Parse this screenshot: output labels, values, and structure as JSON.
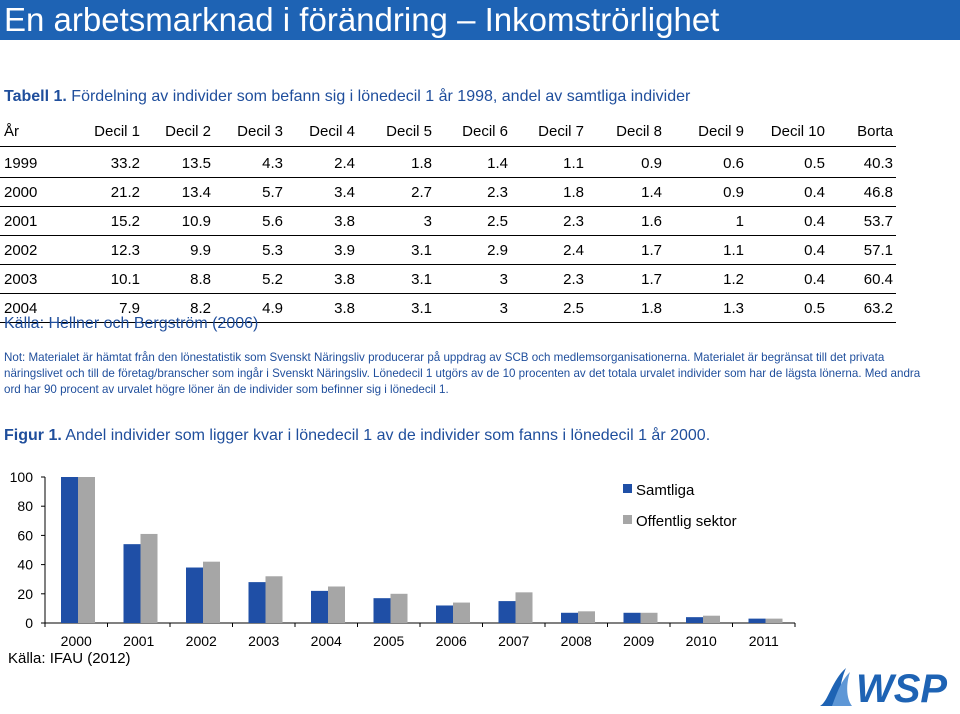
{
  "title": "En arbetsmarknad i förändring – Inkomströrlighet",
  "table": {
    "caption_label": "Tabell 1.",
    "caption_text": "Fördelning av individer som befann sig i lönedecil 1 år 1998, andel av samtliga individer",
    "headers": [
      "År",
      "Decil 1",
      "Decil 2",
      "Decil 3",
      "Decil 4",
      "Decil 5",
      "Decil 6",
      "Decil 7",
      "Decil 8",
      "Decil 9",
      "Decil 10",
      "Borta"
    ],
    "rows": [
      [
        "1999",
        "33.2",
        "13.5",
        "4.3",
        "2.4",
        "1.8",
        "1.4",
        "1.1",
        "0.9",
        "0.6",
        "0.5",
        "40.3"
      ],
      [
        "2000",
        "21.2",
        "13.4",
        "5.7",
        "3.4",
        "2.7",
        "2.3",
        "1.8",
        "1.4",
        "0.9",
        "0.4",
        "46.8"
      ],
      [
        "2001",
        "15.2",
        "10.9",
        "5.6",
        "3.8",
        "3",
        "2.5",
        "2.3",
        "1.6",
        "1",
        "0.4",
        "53.7"
      ],
      [
        "2002",
        "12.3",
        "9.9",
        "5.3",
        "3.9",
        "3.1",
        "2.9",
        "2.4",
        "1.7",
        "1.1",
        "0.4",
        "57.1"
      ],
      [
        "2003",
        "10.1",
        "8.8",
        "5.2",
        "3.8",
        "3.1",
        "3",
        "2.3",
        "1.7",
        "1.2",
        "0.4",
        "60.4"
      ],
      [
        "2004",
        "7.9",
        "8.2",
        "4.9",
        "3.8",
        "3.1",
        "3",
        "2.5",
        "1.8",
        "1.3",
        "0.5",
        "63.2"
      ]
    ],
    "source": "Källa: Hellner och Bergström (2006)",
    "note": "Not: Materialet är hämtat från den lönestatistik som Svenskt Näringsliv producerar på uppdrag av SCB och medlemsorganisationerna. Materialet är begränsat till det privata näringslivet och till de företag/branscher som ingår i Svenskt Näringsliv. Lönedecil 1 utgörs av de 10 procenten av det totala urvalet individer som har de lägsta lönerna. Med andra ord har 90 procent av urvalet högre löner än de individer som befinner sig i lönedecil 1."
  },
  "figure": {
    "caption_label": "Figur 1.",
    "caption_text": "Andel individer som ligger kvar i lönedecil 1 av de individer som fanns i lönedecil 1 år 2000.",
    "source": "Källa: IFAU (2012)"
  },
  "chart_data": {
    "type": "bar",
    "categories": [
      "2000",
      "2001",
      "2002",
      "2003",
      "2004",
      "2005",
      "2006",
      "2007",
      "2008",
      "2009",
      "2010",
      "2011"
    ],
    "series": [
      {
        "name": "Samtliga",
        "color": "#1f4fa6",
        "values": [
          100,
          54,
          38,
          28,
          22,
          17,
          12,
          15,
          7,
          7,
          4,
          3
        ]
      },
      {
        "name": "Offentlig sektor",
        "color": "#a6a6a6",
        "values": [
          100,
          61,
          42,
          32,
          25,
          20,
          14,
          21,
          8,
          7,
          5,
          3
        ]
      }
    ],
    "yticks": [
      "0",
      "20",
      "40",
      "60",
      "80",
      "100"
    ],
    "ylim": [
      0,
      100
    ],
    "legend_position": "top-right",
    "grid": false
  },
  "logo": {
    "text": "WSP",
    "color": "#1e63b4"
  },
  "colors": {
    "accent": "#1e63b4",
    "caption": "#1f4e9c"
  }
}
